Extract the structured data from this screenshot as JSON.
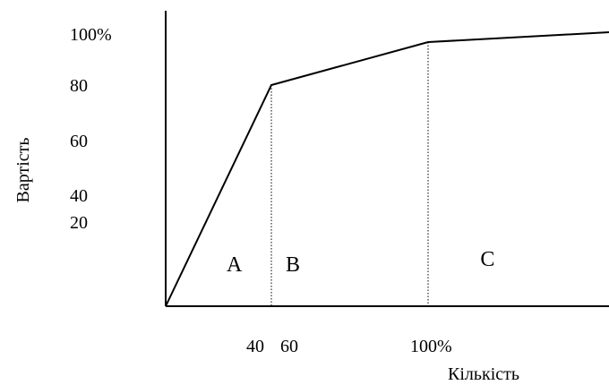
{
  "chart_data": {
    "type": "line",
    "title": "",
    "xlabel": "Кількість",
    "ylabel": "Вартість",
    "y_ticks": [
      {
        "value": 100,
        "label": "100%"
      },
      {
        "value": 80,
        "label": "80"
      },
      {
        "value": 60,
        "label": "60"
      },
      {
        "value": 40,
        "label": "40"
      },
      {
        "value": 20,
        "label": "20"
      }
    ],
    "x_ticks": [
      {
        "value": 40,
        "label": "40"
      },
      {
        "value": 60,
        "label": "60"
      },
      {
        "value": 100,
        "label": "100%"
      }
    ],
    "curve": [
      {
        "x": 0,
        "y": 0
      },
      {
        "x": 40,
        "y": 80
      },
      {
        "x": 100,
        "y": 95
      },
      {
        "x": 170,
        "y": 98
      }
    ],
    "boundaries": [
      {
        "x": 40,
        "y": 80
      },
      {
        "x": 100,
        "y": 95
      }
    ],
    "zones": [
      {
        "label": "A",
        "x": 26,
        "y": 15
      },
      {
        "label": "B",
        "x": 60,
        "y": 15
      },
      {
        "label": "C",
        "x": 123,
        "y": 17
      }
    ],
    "grid": false,
    "colors": {
      "line": "#000000",
      "background": "#ffffff"
    }
  }
}
